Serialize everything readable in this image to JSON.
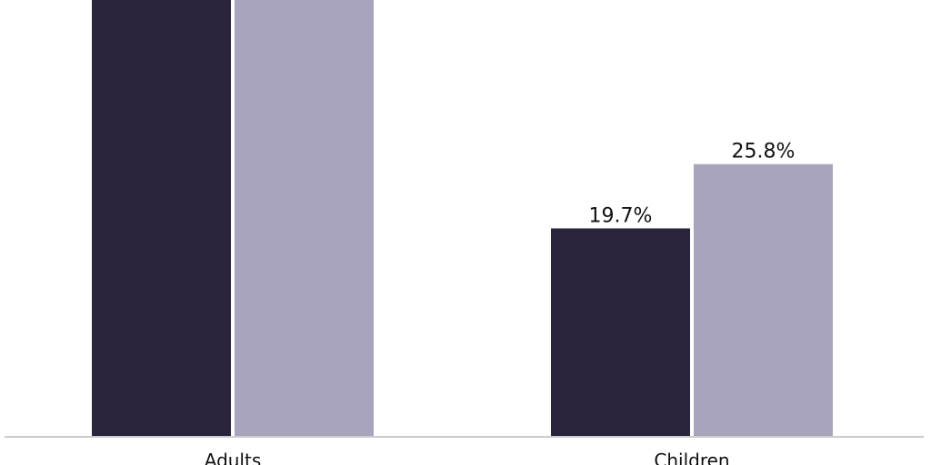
{
  "chart_data": {
    "type": "bar",
    "categories": [
      "Adults",
      "Children"
    ],
    "series": [
      {
        "values": [
          null,
          19.7
        ],
        "color": "#29233c"
      },
      {
        "values": [
          null,
          25.8
        ],
        "color": "#a9a4be"
      }
    ],
    "data_labels": [
      [
        "",
        "19.7%"
      ],
      [
        "",
        "25.8%"
      ]
    ],
    "grid": false,
    "legend": "none",
    "colors": {
      "axis_line": "#cccccc"
    }
  }
}
